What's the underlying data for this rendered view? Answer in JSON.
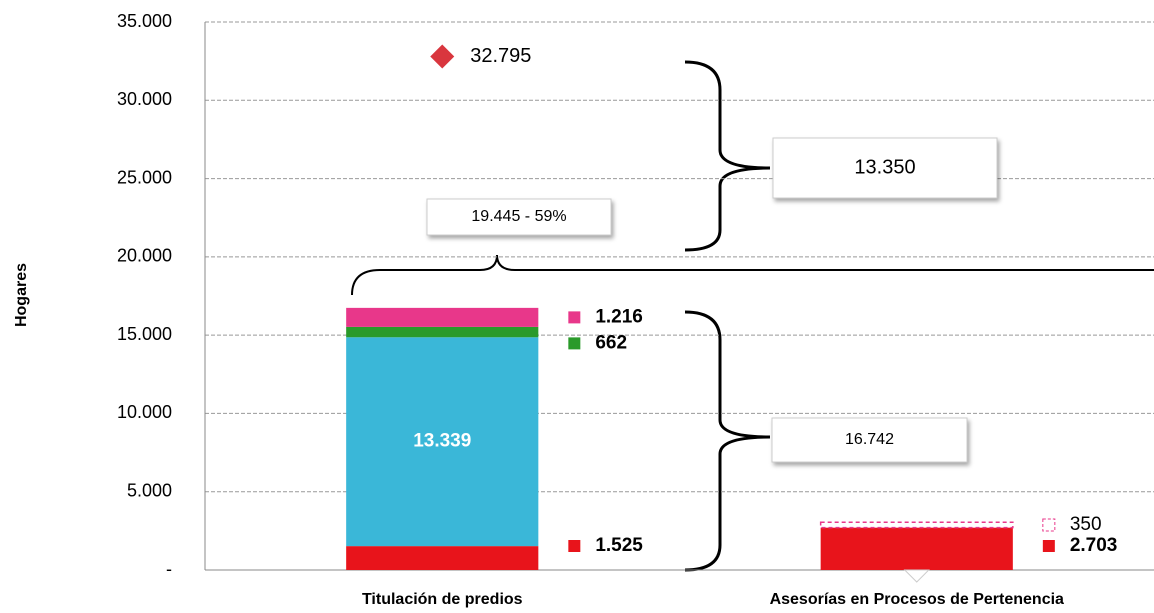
{
  "chart_data": {
    "type": "stacked_bar",
    "y_label": "Hogares",
    "categories": [
      "Titulación de predios",
      "Asesorías en Procesos de Pertenencia"
    ],
    "series": [
      {
        "color": "#e8141b",
        "values": [
          1525,
          2703
        ],
        "value_labels": [
          "1.525",
          "2.703"
        ]
      },
      {
        "color": "#3ab7d8",
        "values": [
          13339,
          null
        ],
        "value_labels": [
          "13.339",
          null
        ]
      },
      {
        "color": "#2a9a2a",
        "values": [
          662,
          null
        ],
        "value_labels": [
          "662",
          null
        ]
      },
      {
        "color": "#e8378a",
        "values": [
          1216,
          null
        ],
        "value_labels": [
          "1.216",
          null
        ]
      },
      {
        "color": "#e8378a",
        "dashed": true,
        "values": [
          null,
          350
        ],
        "value_labels": [
          null,
          "350"
        ]
      }
    ],
    "points": {
      "color": "#d9363e",
      "values": [
        32795,
        null
      ],
      "value_labels": [
        "32.795",
        null
      ]
    },
    "annotations": [
      "13.350",
      "19.445  - 59%",
      "16.742"
    ],
    "ylim": [
      0,
      35000
    ],
    "yticks": [
      {
        "value": 0,
        "label": "-"
      },
      {
        "value": 5000,
        "label": "5.000"
      },
      {
        "value": 10000,
        "label": "10.000"
      },
      {
        "value": 15000,
        "label": "15.000"
      },
      {
        "value": 20000,
        "label": "20.000"
      },
      {
        "value": 25000,
        "label": "25.000"
      },
      {
        "value": 30000,
        "label": "30.000"
      },
      {
        "value": 35000,
        "label": "35.000"
      }
    ],
    "grid": true
  }
}
